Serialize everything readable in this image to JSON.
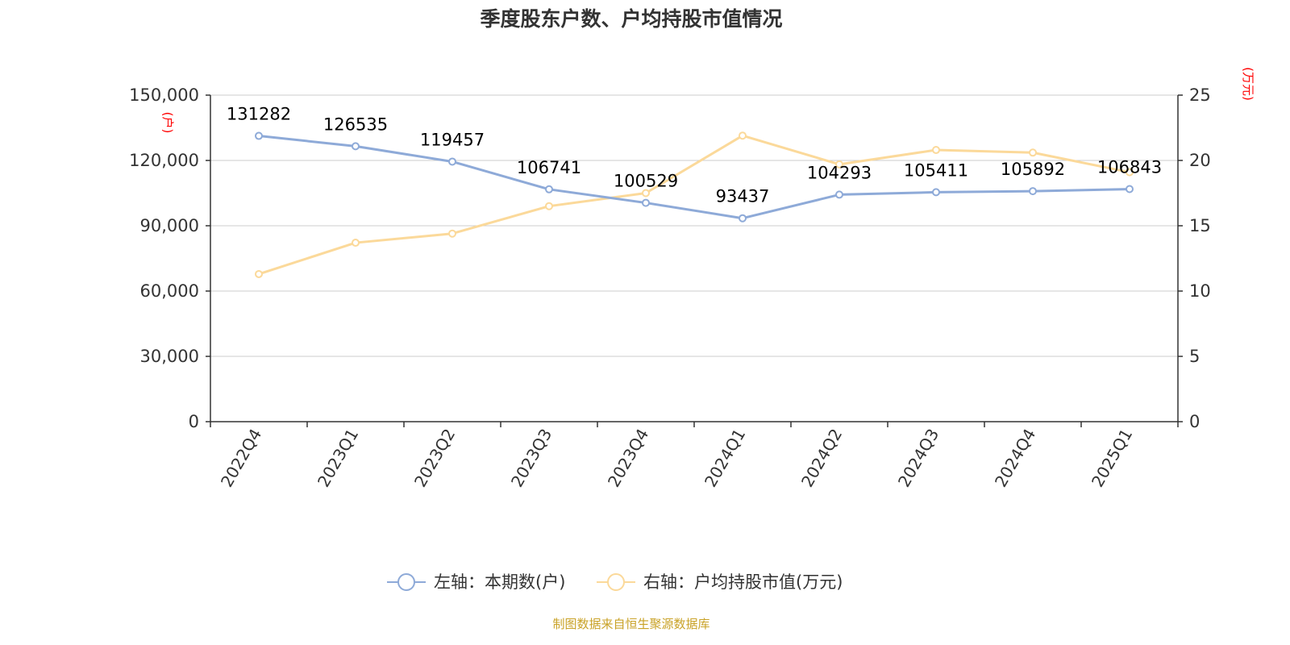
{
  "chart_data": {
    "type": "line",
    "title": "季度股东户数、户均持股市值情况",
    "categories": [
      "2022Q4",
      "2023Q1",
      "2023Q2",
      "2023Q3",
      "2023Q4",
      "2024Q1",
      "2024Q2",
      "2024Q3",
      "2024Q4",
      "2025Q1"
    ],
    "left_axis": {
      "unit": "(户)",
      "ylim": [
        0,
        150000
      ],
      "ticks": [
        0,
        30000,
        60000,
        90000,
        120000,
        150000
      ],
      "tick_labels": [
        "0",
        "30,000",
        "60,000",
        "90,000",
        "120,000",
        "150,000"
      ]
    },
    "right_axis": {
      "unit": "(万元)",
      "ylim": [
        0,
        25
      ],
      "ticks": [
        0,
        5,
        10,
        15,
        20,
        25
      ],
      "tick_labels": [
        "0",
        "5",
        "10",
        "15",
        "20",
        "25"
      ]
    },
    "series": [
      {
        "name": "左轴：本期数(户)",
        "axis": "left",
        "color": "#8eaad8",
        "values": [
          131282,
          126535,
          119457,
          106741,
          100529,
          93437,
          104293,
          105411,
          105892,
          106843
        ],
        "show_labels": true
      },
      {
        "name": "右轴：户均持股市值(万元)",
        "axis": "right",
        "color": "#fbd99a",
        "values": [
          11.3,
          13.7,
          14.4,
          16.5,
          17.5,
          21.9,
          19.7,
          20.8,
          20.6,
          19.1
        ],
        "show_labels": false
      }
    ],
    "grid": true,
    "legend_position": "bottom-center"
  },
  "source_text": "制图数据来自恒生聚源数据库"
}
